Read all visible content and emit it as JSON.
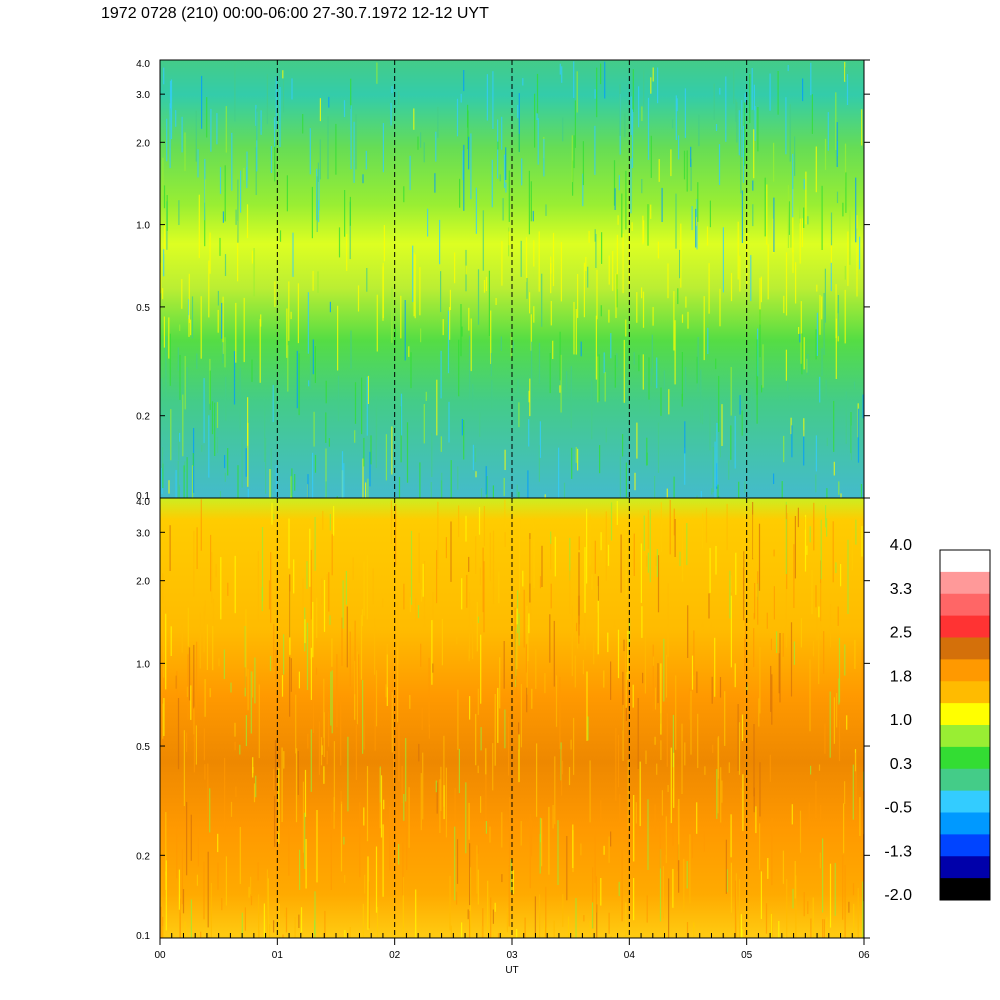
{
  "title": "1972 0728 (210) 00:00-06:00 27-30.7.1972  12-12 UYT",
  "chart_data": [
    {
      "type": "heatmap",
      "panel": "upper",
      "x_label": "UT",
      "x_ticks": [
        "00",
        "01",
        "02",
        "03",
        "04",
        "05",
        "06"
      ],
      "y_scale": "log",
      "y_ticks": [
        "4.0",
        "3.0",
        "2.0",
        "1.0",
        "0.5",
        "0.2",
        "0.1"
      ],
      "y_range": [
        0.1,
        4.0
      ],
      "dashed_vertical_lines_at_ut": [
        1,
        2,
        3,
        4,
        5
      ],
      "dominant_levels_by_y_band": [
        {
          "y_range": [
            2.0,
            4.0
          ],
          "level": -0.5
        },
        {
          "y_range": [
            1.0,
            2.0
          ],
          "level": 0.3
        },
        {
          "y_range": [
            0.5,
            1.0
          ],
          "level": 1.0
        },
        {
          "y_range": [
            0.2,
            0.5
          ],
          "level": 0.3
        },
        {
          "y_range": [
            0.1,
            0.2
          ],
          "level": -0.5
        }
      ]
    },
    {
      "type": "heatmap",
      "panel": "lower",
      "x_label": "UT",
      "x_ticks": [
        "00",
        "01",
        "02",
        "03",
        "04",
        "05",
        "06"
      ],
      "y_scale": "log",
      "y_ticks": [
        "4.0",
        "3.0",
        "2.0",
        "1.0",
        "0.5",
        "0.2",
        "0.1"
      ],
      "y_range": [
        0.1,
        4.0
      ],
      "dashed_vertical_lines_at_ut": [
        1,
        2,
        3,
        4,
        5
      ],
      "dominant_levels_by_y_band": [
        {
          "y_range": [
            3.0,
            4.0
          ],
          "level": 1.0
        },
        {
          "y_range": [
            1.0,
            3.0
          ],
          "level": 1.8
        },
        {
          "y_range": [
            0.5,
            1.0
          ],
          "level": 1.8
        },
        {
          "y_range": [
            0.2,
            0.5
          ],
          "level": 2.2
        },
        {
          "y_range": [
            0.1,
            0.2
          ],
          "level": 1.8
        }
      ]
    }
  ],
  "colorbar": {
    "labels": [
      "4.0",
      "3.3",
      "2.5",
      "1.8",
      "1.0",
      "0.3",
      "-0.5",
      "-1.3",
      "-2.0"
    ],
    "colors_top_to_bottom": [
      "#ffffff",
      "#ff9999",
      "#ff6666",
      "#ff3333",
      "#d4700a",
      "#ff9900",
      "#ffbb00",
      "#ffff00",
      "#99ee33",
      "#33dd33",
      "#44cc88",
      "#33ccff",
      "#0099ff",
      "#0044ff",
      "#0000aa",
      "#000000"
    ]
  }
}
